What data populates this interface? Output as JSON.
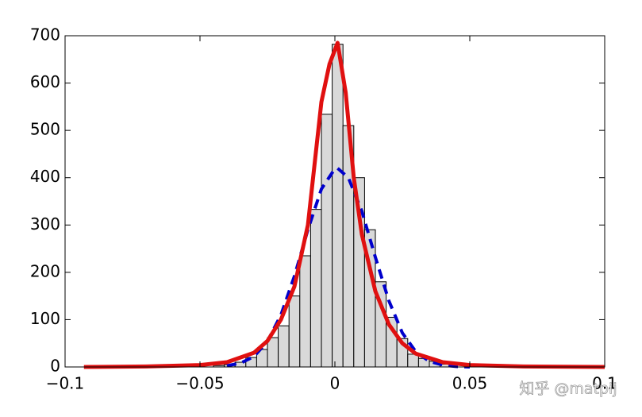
{
  "chart_data": {
    "type": "histogram",
    "bins": [
      -0.045,
      -0.041,
      -0.037,
      -0.033,
      -0.029,
      -0.025,
      -0.021,
      -0.017,
      -0.013,
      -0.009,
      -0.005,
      -0.001,
      0.003,
      0.007,
      0.011,
      0.015,
      0.019,
      0.023,
      0.027,
      0.031,
      0.035,
      0.039,
      0.043
    ],
    "counts": [
      3,
      5,
      10,
      20,
      37,
      62,
      87,
      150,
      235,
      333,
      534,
      682,
      510,
      400,
      290,
      180,
      105,
      60,
      27,
      18,
      12,
      6
    ],
    "bar_color": "#d9d9d9",
    "series": [
      {
        "color": "#0000cc",
        "style": "dashed",
        "x": [
          -0.04,
          -0.035,
          -0.03,
          -0.025,
          -0.02,
          -0.015,
          -0.01,
          -0.005,
          0,
          0.001,
          0.005,
          0.01,
          0.015,
          0.02,
          0.025,
          0.03,
          0.035,
          0.04,
          0.045,
          0.05
        ],
        "values": [
          2.5,
          8,
          22,
          54,
          110,
          192,
          290,
          376,
          419,
          420,
          400,
          329,
          232,
          140,
          72,
          32,
          12,
          4,
          1,
          0
        ]
      },
      {
        "color": "#e01010",
        "style": "solid",
        "x": [
          -0.093,
          -0.07,
          -0.05,
          -0.04,
          -0.03,
          -0.025,
          -0.02,
          -0.015,
          -0.01,
          -0.005,
          -0.002,
          0.001,
          0.004,
          0.007,
          0.01,
          0.015,
          0.02,
          0.025,
          0.03,
          0.04,
          0.05,
          0.07,
          0.1
        ],
        "values": [
          0,
          1,
          4,
          10,
          30,
          55,
          100,
          170,
          300,
          560,
          640,
          685,
          580,
          400,
          280,
          160,
          90,
          50,
          28,
          10,
          4,
          1,
          0
        ]
      }
    ],
    "xlim": [
      -0.1,
      0.1
    ],
    "ylim": [
      0,
      700
    ],
    "xticks": [
      {
        "value": -0.1,
        "label": "−0.1"
      },
      {
        "value": -0.05,
        "label": "−0.05"
      },
      0,
      0.05,
      0.1
    ],
    "yticks": [
      0,
      100,
      200,
      300,
      400,
      500,
      600,
      700
    ]
  },
  "watermark": "知乎 @matpij"
}
